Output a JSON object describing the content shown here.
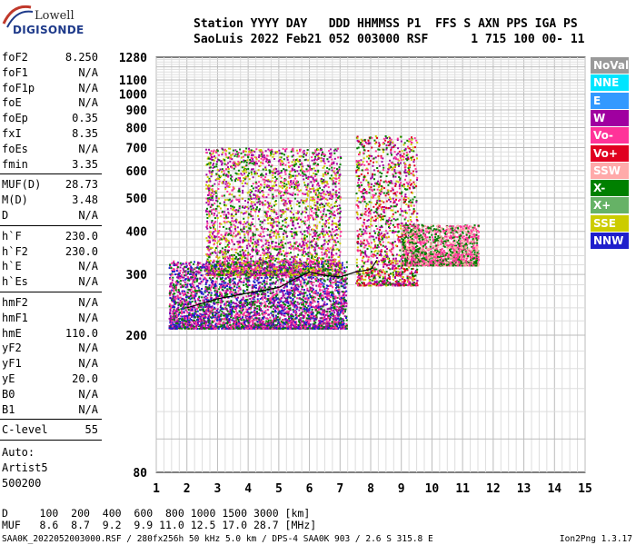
{
  "logo": {
    "brand": "Lowell",
    "product": "DIGISONDE"
  },
  "header": {
    "line1": "Station YYYY DAY   DDD HHMMSS P1  FFS S AXN PPS IGA PS",
    "line2": "SaoLuis 2022 Feb21 052 003000 RSF      1 715 100 00- 11"
  },
  "params": [
    {
      "label": "foF2",
      "value": "8.250"
    },
    {
      "label": "foF1",
      "value": "N/A"
    },
    {
      "label": "foF1p",
      "value": "N/A"
    },
    {
      "label": "foE",
      "value": "N/A"
    },
    {
      "label": "foEp",
      "value": "0.35"
    },
    {
      "label": "fxI",
      "value": "8.35"
    },
    {
      "label": "foEs",
      "value": "N/A"
    },
    {
      "label": "fmin",
      "value": "3.35"
    },
    {
      "label": "MUF(D)",
      "value": "28.73"
    },
    {
      "label": "M(D)",
      "value": "3.48"
    },
    {
      "label": "D",
      "value": "N/A"
    },
    {
      "label": "h`F",
      "value": "230.0"
    },
    {
      "label": "h`F2",
      "value": "230.0"
    },
    {
      "label": "h`E",
      "value": "N/A"
    },
    {
      "label": "h`Es",
      "value": "N/A"
    },
    {
      "label": "hmF2",
      "value": "N/A"
    },
    {
      "label": "hmF1",
      "value": "N/A"
    },
    {
      "label": "hmE",
      "value": "110.0"
    },
    {
      "label": "yF2",
      "value": "N/A"
    },
    {
      "label": "yF1",
      "value": "N/A"
    },
    {
      "label": "yE",
      "value": "20.0"
    },
    {
      "label": "B0",
      "value": "N/A"
    },
    {
      "label": "B1",
      "value": "N/A"
    },
    {
      "label": "C-level",
      "value": "55"
    }
  ],
  "autoscaling": {
    "label": "Auto:",
    "software": "Artist5",
    "version": "500200"
  },
  "legend": [
    {
      "label": "NoVal",
      "color": "#999999"
    },
    {
      "label": "NNE",
      "color": "#00e5ff"
    },
    {
      "label": "E",
      "color": "#3399ff"
    },
    {
      "label": "W",
      "color": "#a000a0"
    },
    {
      "label": "Vo-",
      "color": "#ff3399"
    },
    {
      "label": "Vo+",
      "color": "#e00020"
    },
    {
      "label": "SSW",
      "color": "#ffaaaa"
    },
    {
      "label": "X-",
      "color": "#008000"
    },
    {
      "label": "X+",
      "color": "#66b266"
    },
    {
      "label": "SSE",
      "color": "#cccc00"
    },
    {
      "label": "NNW",
      "color": "#1f1fcc"
    }
  ],
  "footer": {
    "d_row": "D     100  200  400  600  800 1000 1500 3000 [km]",
    "muf_row": "MUF   8.6  8.7  9.2  9.9 11.0 12.5 17.0 28.7 [MHz]",
    "file_info": "SAA0K_2022052003000.RSF / 280fx256h 50 kHz 5.0 km / DPS-4 SAA0K 903 / 2.6 S 315.8 E",
    "version": "Ion2Png 1.3.17"
  },
  "chart_data": {
    "type": "scatter",
    "title": "",
    "xlabel": "",
    "ylabel": "",
    "xlim": [
      1,
      15
    ],
    "ylim": [
      80,
      1280
    ],
    "x_ticks": [
      1,
      2,
      3,
      4,
      5,
      6,
      7,
      8,
      9,
      10,
      11,
      12,
      13,
      14,
      15
    ],
    "y_ticks": [
      80,
      200,
      300,
      400,
      500,
      600,
      700,
      800,
      900,
      1000,
      1100,
      1280
    ],
    "y_scale": "log",
    "grid": true,
    "traces": [
      {
        "name": "",
        "color": "#000000",
        "x": [
          2.0,
          3.0,
          4.0,
          5.0,
          5.5,
          6.0,
          6.5,
          7.0,
          7.5,
          8.0,
          8.2
        ],
        "y": [
          240,
          255,
          265,
          275,
          290,
          305,
          298,
          295,
          305,
          310,
          330
        ]
      }
    ],
    "echo_regions": [
      {
        "xrange": [
          1.4,
          7.2
        ],
        "yrange": [
          210,
          330
        ],
        "colors": [
          "#ff3399",
          "#a000a0",
          "#1f1fcc",
          "#008000"
        ]
      },
      {
        "xrange": [
          2.6,
          7.0
        ],
        "yrange": [
          300,
          700
        ],
        "colors": [
          "#a000a0",
          "#ff3399",
          "#cccc00",
          "#008000"
        ]
      },
      {
        "xrange": [
          7.5,
          9.5
        ],
        "yrange": [
          280,
          760
        ],
        "colors": [
          "#e00020",
          "#ff3399",
          "#a000a0",
          "#cccc00",
          "#008000"
        ]
      },
      {
        "xrange": [
          9.0,
          11.5
        ],
        "yrange": [
          320,
          420
        ],
        "colors": [
          "#ffaaaa",
          "#ff3399",
          "#008000"
        ]
      }
    ]
  }
}
